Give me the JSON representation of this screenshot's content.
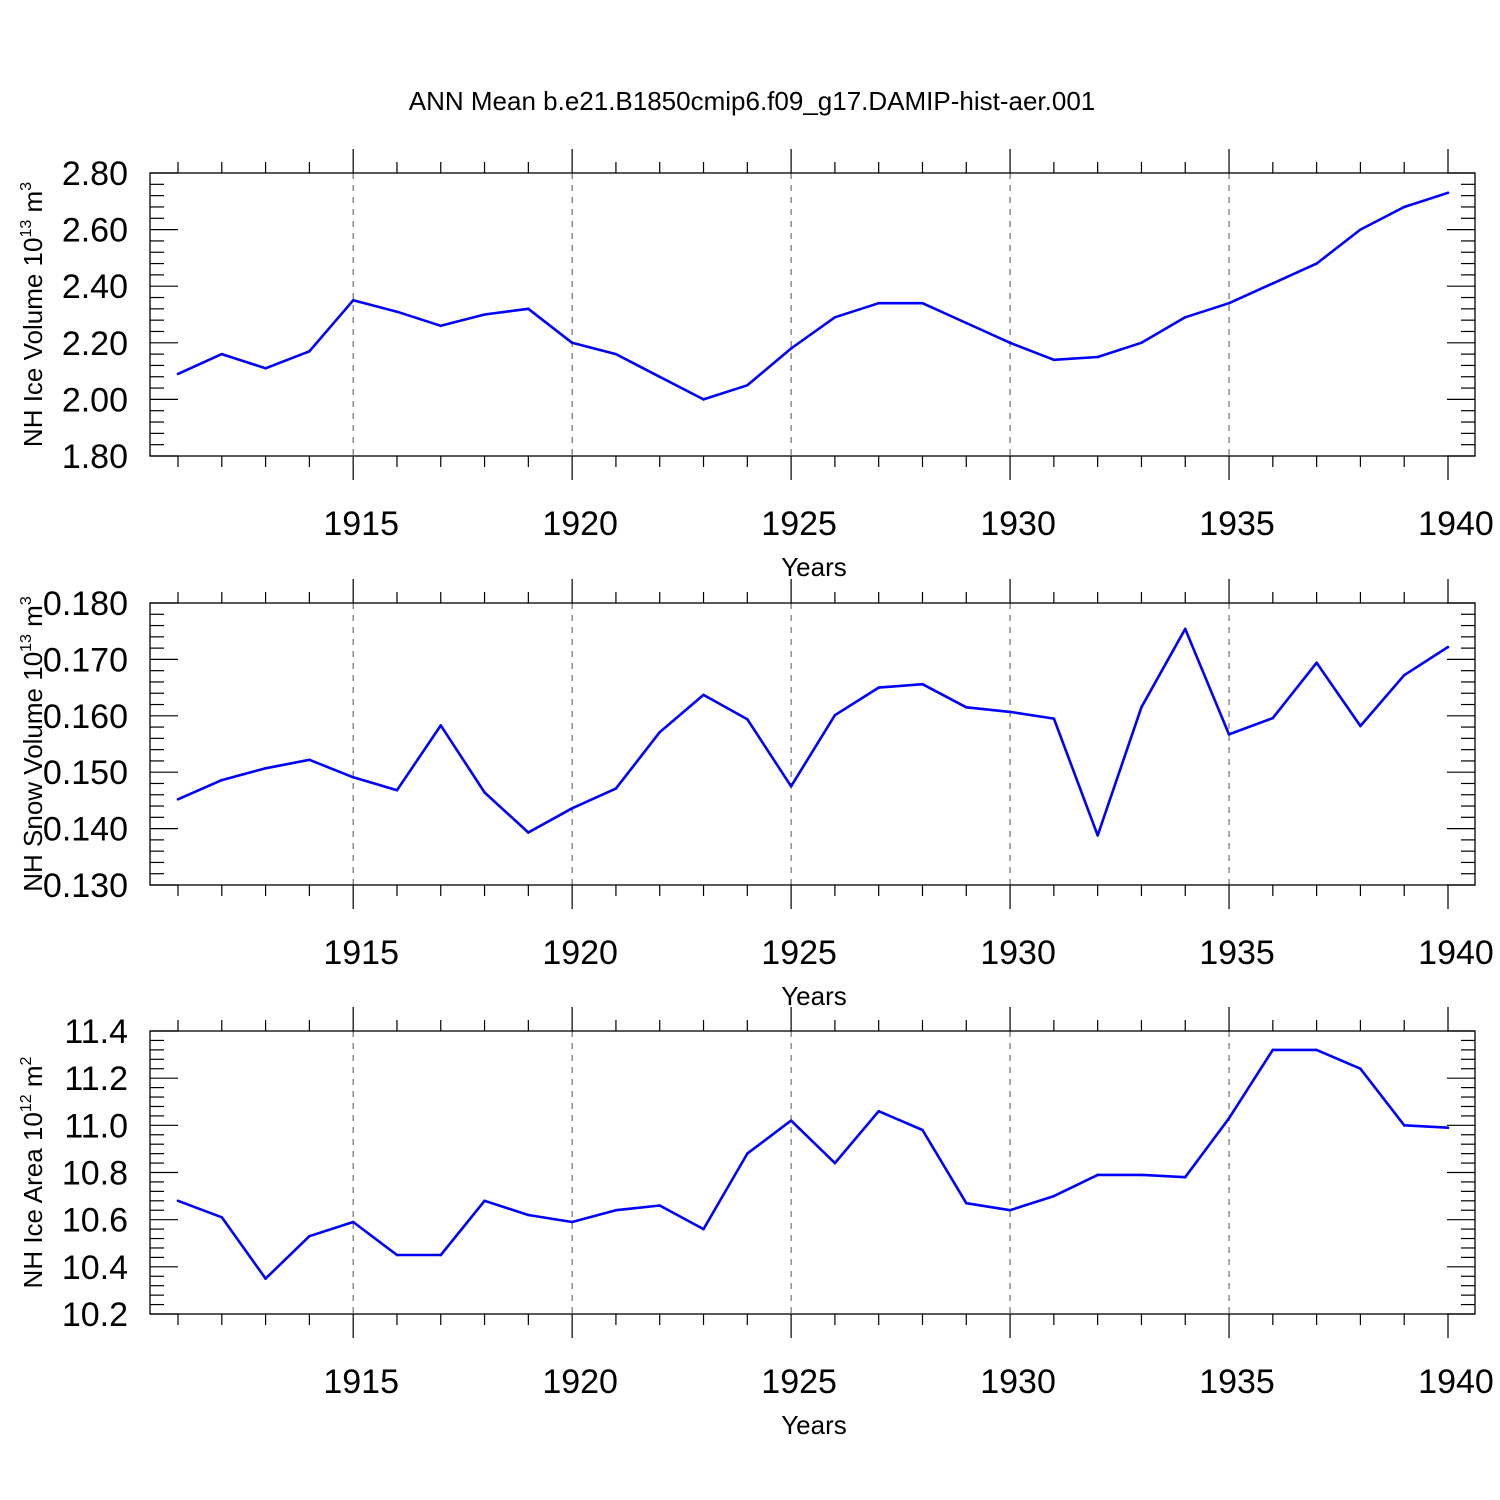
{
  "title": "ANN Mean b.e21.B1850cmip6.f09_g17.DAMIP-hist-aer.001",
  "line_color": "#0000ff",
  "chart_data": [
    {
      "type": "line",
      "title": "",
      "ylabel": {
        "text": "NH Ice Volume 10",
        "sup": "13",
        "unit": " m",
        "unit_sup": "3"
      },
      "xlabel": "Years",
      "xlim": [
        1911,
        1940
      ],
      "x_ticks": [
        1915,
        1920,
        1925,
        1930,
        1935,
        1940
      ],
      "ylim": [
        1.8,
        2.8
      ],
      "y_ticks": [
        "1.80",
        "2.00",
        "2.20",
        "2.40",
        "2.60",
        "2.80"
      ],
      "y_minor_step": 0.04,
      "grid": "vertical dashed at major x ticks",
      "x": [
        1911,
        1912,
        1913,
        1914,
        1915,
        1916,
        1917,
        1918,
        1919,
        1920,
        1921,
        1922,
        1923,
        1924,
        1925,
        1926,
        1927,
        1928,
        1929,
        1930,
        1931,
        1932,
        1933,
        1934,
        1935,
        1936,
        1937,
        1938,
        1939,
        1940
      ],
      "series": [
        {
          "values": [
            2.09,
            2.16,
            2.11,
            2.17,
            2.35,
            2.31,
            2.26,
            2.3,
            2.32,
            2.2,
            2.16,
            2.08,
            2.0,
            2.05,
            2.18,
            2.29,
            2.34,
            2.34,
            2.27,
            2.2,
            2.14,
            2.15,
            2.2,
            2.29,
            2.34,
            2.41,
            2.48,
            2.6,
            2.68,
            2.73
          ]
        }
      ]
    },
    {
      "type": "line",
      "title": "",
      "ylabel": {
        "text": "NH Snow Volume 10",
        "sup": "13",
        "unit": " m",
        "unit_sup": "3"
      },
      "xlabel": "Years",
      "xlim": [
        1911,
        1940
      ],
      "x_ticks": [
        1915,
        1920,
        1925,
        1930,
        1935,
        1940
      ],
      "ylim": [
        0.13,
        0.18
      ],
      "y_ticks": [
        "0.130",
        "0.140",
        "0.150",
        "0.160",
        "0.170",
        "0.180"
      ],
      "y_minor_step": 0.002,
      "grid": "vertical dashed at major x ticks",
      "x": [
        1911,
        1912,
        1913,
        1914,
        1915,
        1916,
        1917,
        1918,
        1919,
        1920,
        1921,
        1922,
        1923,
        1924,
        1925,
        1926,
        1927,
        1928,
        1929,
        1930,
        1931,
        1932,
        1933,
        1934,
        1935,
        1936,
        1937,
        1938,
        1939,
        1940
      ],
      "series": [
        {
          "values": [
            0.1452,
            0.1486,
            0.1507,
            0.1522,
            0.1491,
            0.1468,
            0.1583,
            0.1464,
            0.1393,
            0.1436,
            0.1471,
            0.1571,
            0.1637,
            0.1594,
            0.1475,
            0.1601,
            0.165,
            0.1656,
            0.1615,
            0.1607,
            0.1595,
            0.1388,
            0.1615,
            0.1754,
            0.1567,
            0.1596,
            0.1694,
            0.1582,
            0.1672,
            0.1722
          ]
        }
      ]
    },
    {
      "type": "line",
      "title": "",
      "ylabel": {
        "text": "NH Ice Area 10",
        "sup": "12",
        "unit": " m",
        "unit_sup": "2"
      },
      "xlabel": "Years",
      "xlim": [
        1911,
        1940
      ],
      "x_ticks": [
        1915,
        1920,
        1925,
        1930,
        1935,
        1940
      ],
      "ylim": [
        10.2,
        11.4
      ],
      "y_ticks": [
        "10.2",
        "10.4",
        "10.6",
        "10.8",
        "11.0",
        "11.2",
        "11.4"
      ],
      "y_minor_step": 0.04,
      "grid": "vertical dashed at major x ticks",
      "x": [
        1911,
        1912,
        1913,
        1914,
        1915,
        1916,
        1917,
        1918,
        1919,
        1920,
        1921,
        1922,
        1923,
        1924,
        1925,
        1926,
        1927,
        1928,
        1929,
        1930,
        1931,
        1932,
        1933,
        1934,
        1935,
        1936,
        1937,
        1938,
        1939,
        1940
      ],
      "series": [
        {
          "values": [
            10.68,
            10.61,
            10.35,
            10.53,
            10.59,
            10.45,
            10.45,
            10.68,
            10.62,
            10.59,
            10.64,
            10.66,
            10.56,
            10.88,
            11.02,
            10.84,
            11.06,
            10.98,
            10.67,
            10.64,
            10.7,
            10.79,
            10.79,
            10.78,
            11.03,
            11.32,
            11.32,
            11.24,
            11.0,
            10.99
          ]
        }
      ]
    }
  ]
}
